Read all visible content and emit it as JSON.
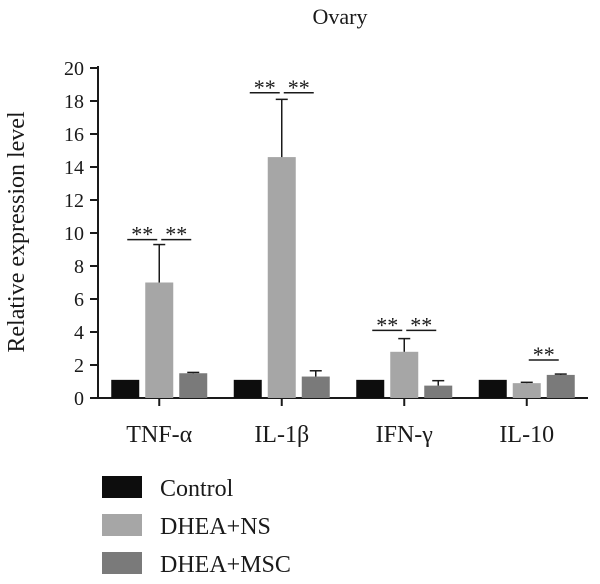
{
  "chart_data": {
    "type": "bar",
    "title": "Ovary",
    "xlabel": "",
    "ylabel": "Relative expression level",
    "ylim": [
      0,
      20
    ],
    "yticks": [
      0,
      2,
      4,
      6,
      8,
      10,
      12,
      14,
      16,
      18,
      20
    ],
    "grid": false,
    "legend_position": "bottom-left",
    "categories": [
      "TNF-α",
      "IL-1β",
      "IFN-γ",
      "IL-10"
    ],
    "series": [
      {
        "name": "Control",
        "color": "#0d0d0d",
        "values": [
          1.1,
          1.1,
          1.1,
          1.1
        ],
        "errors": [
          0,
          0,
          0,
          0
        ]
      },
      {
        "name": "DHEA+NS",
        "color": "#a6a6a6",
        "values": [
          7.0,
          14.6,
          2.8,
          0.9
        ],
        "errors": [
          2.3,
          3.5,
          0.8,
          0.05
        ]
      },
      {
        "name": "DHEA+MSC",
        "color": "#7a7a7a",
        "values": [
          1.5,
          1.3,
          0.75,
          1.4
        ],
        "errors": [
          0.05,
          0.35,
          0.3,
          0.05
        ]
      }
    ],
    "significance": [
      {
        "category": 0,
        "from": 0,
        "to": 1,
        "y": 9.6,
        "label": "**"
      },
      {
        "category": 0,
        "from": 1,
        "to": 2,
        "y": 9.6,
        "label": "**"
      },
      {
        "category": 1,
        "from": 0,
        "to": 1,
        "y": 18.5,
        "label": "**"
      },
      {
        "category": 1,
        "from": 1,
        "to": 2,
        "y": 18.5,
        "label": "**"
      },
      {
        "category": 2,
        "from": 0,
        "to": 1,
        "y": 4.1,
        "label": "**"
      },
      {
        "category": 2,
        "from": 1,
        "to": 2,
        "y": 4.1,
        "label": "**"
      },
      {
        "category": 3,
        "from": 1,
        "to": 2,
        "y": 2.3,
        "label": "**"
      }
    ]
  }
}
